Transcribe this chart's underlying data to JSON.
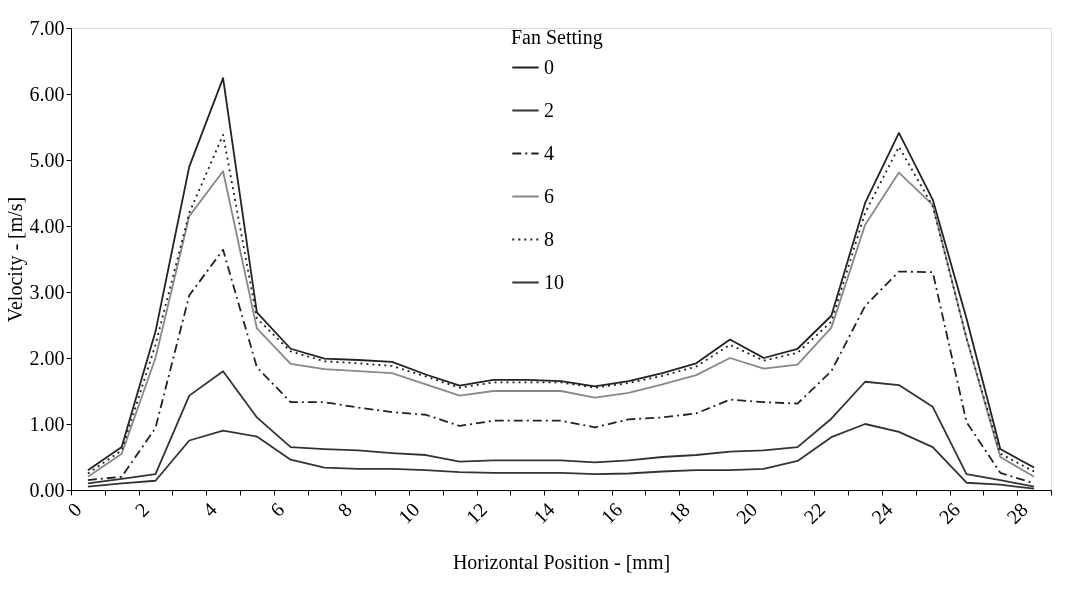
{
  "chart_data": {
    "type": "line",
    "xlabel": "Horizontal Position - [mm]",
    "ylabel": "Velocity - [m/s]",
    "legend_title": "Fan Setting",
    "legend": "top",
    "grid": false,
    "x": [
      0.5,
      1.5,
      2.5,
      3.5,
      4.5,
      5.5,
      6.5,
      7.5,
      8.5,
      9.5,
      10.5,
      11.5,
      12.5,
      13.5,
      14.5,
      15.5,
      16.5,
      17.5,
      18.5,
      19.5,
      20.5,
      21.5,
      22.5,
      23.5,
      24.5,
      25.5,
      26.5,
      27.5,
      28.5
    ],
    "xlim": [
      0,
      29
    ],
    "xticks": [
      0,
      {
        "value": 1,
        "label": null
      },
      2,
      {
        "value": 3,
        "label": null
      },
      4,
      {
        "value": 5,
        "label": null
      },
      6,
      {
        "value": 7,
        "label": null
      },
      8,
      {
        "value": 9,
        "label": null
      },
      10,
      {
        "value": 11,
        "label": null
      },
      12,
      {
        "value": 13,
        "label": null
      },
      14,
      {
        "value": 15,
        "label": null
      },
      16,
      {
        "value": 17,
        "label": null
      },
      18,
      {
        "value": 19,
        "label": null
      },
      20,
      {
        "value": 21,
        "label": null
      },
      22,
      {
        "value": 23,
        "label": null
      },
      24,
      {
        "value": 25,
        "label": null
      },
      26,
      {
        "value": 27,
        "label": null
      },
      28,
      {
        "value": 29,
        "label": null
      }
    ],
    "ylim": [
      0,
      7
    ],
    "yticks": [
      {
        "value": 0,
        "label": "0.00"
      },
      {
        "value": 1,
        "label": "1.00"
      },
      {
        "value": 2,
        "label": "2.00"
      },
      {
        "value": 3,
        "label": "3.00"
      },
      {
        "value": 4,
        "label": "4.00"
      },
      {
        "value": 5,
        "label": "5.00"
      },
      {
        "value": 6,
        "label": "6.00"
      },
      {
        "value": 7,
        "label": "7.00"
      }
    ],
    "series": [
      {
        "name": "0",
        "color": "#222222",
        "line_style": "solid",
        "values": [
          0.3,
          0.65,
          2.4,
          4.9,
          6.24,
          2.69,
          2.14,
          1.99,
          1.97,
          1.94,
          1.75,
          1.58,
          1.67,
          1.67,
          1.65,
          1.57,
          1.65,
          1.77,
          1.92,
          2.28,
          2.0,
          2.14,
          2.64,
          4.35,
          5.41,
          4.4,
          2.6,
          0.62,
          0.34
        ]
      },
      {
        "name": "2",
        "color": "#333333",
        "line_style": "solid",
        "values": [
          0.1,
          0.17,
          0.24,
          1.43,
          1.8,
          1.1,
          0.65,
          0.62,
          0.6,
          0.56,
          0.53,
          0.43,
          0.45,
          0.45,
          0.45,
          0.42,
          0.45,
          0.5,
          0.53,
          0.58,
          0.6,
          0.65,
          1.08,
          1.64,
          1.59,
          1.26,
          0.24,
          0.15,
          0.05
        ]
      },
      {
        "name": "4",
        "color": "#222222",
        "line_style": "dashed",
        "values": [
          0.15,
          0.2,
          0.94,
          2.95,
          3.64,
          1.86,
          1.33,
          1.33,
          1.25,
          1.18,
          1.14,
          0.97,
          1.05,
          1.05,
          1.05,
          0.95,
          1.07,
          1.1,
          1.16,
          1.37,
          1.33,
          1.31,
          1.8,
          2.79,
          3.31,
          3.3,
          1.03,
          0.26,
          0.1
        ]
      },
      {
        "name": "6",
        "color": "#888888",
        "line_style": "solid",
        "values": [
          0.2,
          0.55,
          2.0,
          4.15,
          4.83,
          2.45,
          1.91,
          1.83,
          1.8,
          1.77,
          1.6,
          1.43,
          1.5,
          1.5,
          1.5,
          1.4,
          1.47,
          1.6,
          1.74,
          2.0,
          1.84,
          1.9,
          2.46,
          4.02,
          4.81,
          4.32,
          2.3,
          0.5,
          0.2
        ]
      },
      {
        "name": "8",
        "color": "#222222",
        "line_style": "dotted",
        "values": [
          0.25,
          0.6,
          2.2,
          4.2,
          5.38,
          2.6,
          2.1,
          1.95,
          1.92,
          1.88,
          1.72,
          1.55,
          1.63,
          1.63,
          1.63,
          1.55,
          1.62,
          1.73,
          1.87,
          2.2,
          1.96,
          2.08,
          2.55,
          4.2,
          5.2,
          4.3,
          2.3,
          0.55,
          0.28
        ]
      },
      {
        "name": "10",
        "color": "#333333",
        "line_style": "solid",
        "values": [
          0.05,
          0.1,
          0.14,
          0.75,
          0.9,
          0.81,
          0.46,
          0.34,
          0.32,
          0.32,
          0.3,
          0.27,
          0.26,
          0.26,
          0.26,
          0.24,
          0.25,
          0.28,
          0.3,
          0.3,
          0.32,
          0.44,
          0.8,
          1.0,
          0.88,
          0.65,
          0.11,
          0.08,
          0.02
        ]
      }
    ]
  }
}
